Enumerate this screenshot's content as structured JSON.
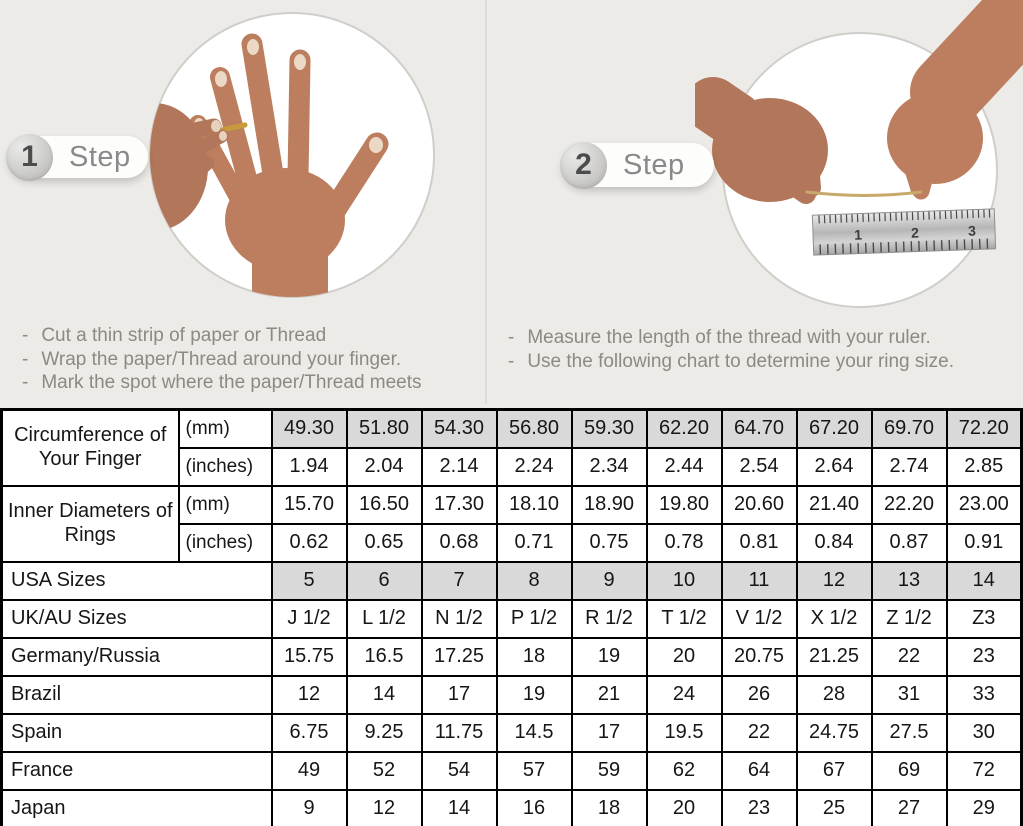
{
  "steps": [
    {
      "number": "1",
      "label": "Step",
      "bullets": [
        "Cut a thin strip of paper or Thread",
        "Wrap the paper/Thread around your finger.",
        "Mark the spot where the paper/Thread meets"
      ]
    },
    {
      "number": "2",
      "label": "Step",
      "bullets": [
        "Measure the length of the thread with your ruler.",
        "Use the following chart to determine your ring size."
      ]
    }
  ],
  "photos": {
    "step1_description": "hand-with-thread-around-ring-finger",
    "step2_description": "hands-measuring-thread-with-ruler",
    "ruler_numbers": [
      "1",
      "2",
      "3"
    ]
  },
  "table": {
    "row_groups": [
      {
        "label": "Circumference of Your Finger",
        "rows": [
          {
            "sub": "(mm)",
            "shaded": true,
            "values": [
              "49.30",
              "51.80",
              "54.30",
              "56.80",
              "59.30",
              "62.20",
              "64.70",
              "67.20",
              "69.70",
              "72.20"
            ]
          },
          {
            "sub": "(inches)",
            "shaded": false,
            "values": [
              "1.94",
              "2.04",
              "2.14",
              "2.24",
              "2.34",
              "2.44",
              "2.54",
              "2.64",
              "2.74",
              "2.85"
            ]
          }
        ]
      },
      {
        "label": "Inner Diameters of Rings",
        "rows": [
          {
            "sub": "(mm)",
            "shaded": false,
            "values": [
              "15.70",
              "16.50",
              "17.30",
              "18.10",
              "18.90",
              "19.80",
              "20.60",
              "21.40",
              "22.20",
              "23.00"
            ]
          },
          {
            "sub": "(inches)",
            "shaded": false,
            "values": [
              "0.62",
              "0.65",
              "0.68",
              "0.71",
              "0.75",
              "0.78",
              "0.81",
              "0.84",
              "0.87",
              "0.91"
            ]
          }
        ]
      }
    ],
    "size_rows": [
      {
        "label": "USA Sizes",
        "shaded": true,
        "values": [
          "5",
          "6",
          "7",
          "8",
          "9",
          "10",
          "11",
          "12",
          "13",
          "14"
        ]
      },
      {
        "label": "UK/AU Sizes",
        "shaded": false,
        "values": [
          "J 1/2",
          "L 1/2",
          "N 1/2",
          "P 1/2",
          "R 1/2",
          "T 1/2",
          "V 1/2",
          "X 1/2",
          "Z 1/2",
          "Z3"
        ]
      },
      {
        "label": "Germany/Russia",
        "shaded": false,
        "values": [
          "15.75",
          "16.5",
          "17.25",
          "18",
          "19",
          "20",
          "20.75",
          "21.25",
          "22",
          "23"
        ]
      },
      {
        "label": "Brazil",
        "shaded": false,
        "values": [
          "12",
          "14",
          "17",
          "19",
          "21",
          "24",
          "26",
          "28",
          "31",
          "33"
        ]
      },
      {
        "label": "Spain",
        "shaded": false,
        "values": [
          "6.75",
          "9.25",
          "11.75",
          "14.5",
          "17",
          "19.5",
          "22",
          "24.75",
          "27.5",
          "30"
        ]
      },
      {
        "label": "France",
        "shaded": false,
        "values": [
          "49",
          "52",
          "54",
          "57",
          "59",
          "62",
          "64",
          "67",
          "69",
          "72"
        ]
      },
      {
        "label": "Japan",
        "shaded": false,
        "values": [
          "9",
          "12",
          "14",
          "16",
          "18",
          "20",
          "23",
          "25",
          "27",
          "29"
        ]
      }
    ]
  },
  "colors": {
    "page_background": "#edebe7",
    "shaded_cell": "#d9d9d9",
    "table_border": "#000000",
    "muted_text": "#8d8983",
    "thread_gold": "#c79b3b"
  }
}
